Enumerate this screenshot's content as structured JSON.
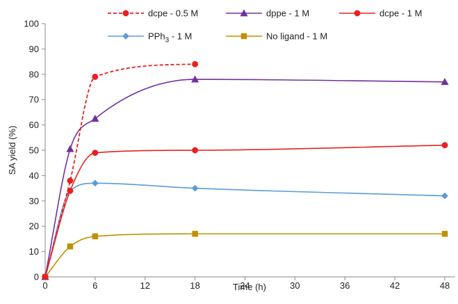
{
  "chart_data": {
    "type": "line",
    "xlabel": "Time (h)",
    "ylabel": "SA yield (%)",
    "xlim": [
      0,
      48
    ],
    "ylim": [
      0,
      100
    ],
    "xticks": [
      "0",
      "6",
      "12",
      "18",
      "24",
      "30",
      "36",
      "42",
      "48"
    ],
    "yticks": [
      "0",
      "10",
      "20",
      "30",
      "40",
      "50",
      "60",
      "70",
      "80",
      "90",
      "100"
    ],
    "grid": false,
    "legend_position": "top",
    "series": [
      {
        "name": "dcpe - 0.5 M",
        "color": "#e8201f",
        "marker": "circle",
        "dashed": true,
        "x": [
          0,
          3,
          6,
          18
        ],
        "y": [
          0,
          38,
          79,
          84
        ]
      },
      {
        "name": "dppe - 1 M",
        "color": "#7030a0",
        "marker": "triangle",
        "dashed": false,
        "x": [
          0,
          3,
          6,
          18,
          48
        ],
        "y": [
          0,
          50.5,
          62.5,
          78,
          77
        ]
      },
      {
        "name": "dcpe - 1 M",
        "color": "#e8201f",
        "marker": "circle",
        "dashed": false,
        "x": [
          0,
          3,
          6,
          18,
          48
        ],
        "y": [
          0,
          34,
          49,
          50,
          52
        ]
      },
      {
        "name": "PPh3 - 1 M",
        "name_main": "PPh",
        "name_sub": "3",
        "name_rest": " - 1 M",
        "color": "#5b9bd5",
        "marker": "diamond",
        "dashed": false,
        "x": [
          0,
          3,
          6,
          18,
          48
        ],
        "y": [
          0,
          34,
          37,
          35,
          32
        ]
      },
      {
        "name": "No ligand - 1 M",
        "color": "#bf9000",
        "marker": "square",
        "dashed": false,
        "x": [
          0,
          3,
          6,
          18,
          48
        ],
        "y": [
          0,
          12,
          16,
          17,
          17
        ]
      }
    ]
  }
}
